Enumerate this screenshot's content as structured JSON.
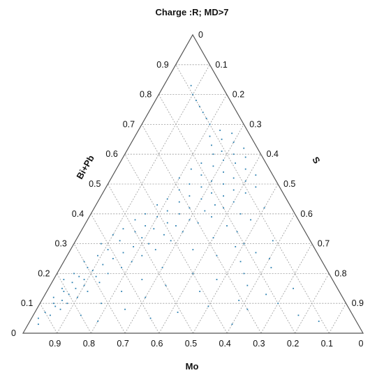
{
  "chart_data": {
    "type": "scatter",
    "subtype": "ternary",
    "title": "Charge :R; MD>7",
    "axes": {
      "bottom": {
        "label": "Mo",
        "ticks": [
          "0.9",
          "0.8",
          "0.7",
          "0.6",
          "0.5",
          "0.4",
          "0.3",
          "0.2",
          "0.1",
          "0"
        ]
      },
      "left": {
        "label": "Bi+Pb",
        "ticks": [
          "0",
          "0.1",
          "0.2",
          "0.3",
          "0.4",
          "0.5",
          "0.6",
          "0.7",
          "0.8",
          "0.9"
        ]
      },
      "right": {
        "label": "S",
        "ticks": [
          "0",
          "0.1",
          "0.2",
          "0.3",
          "0.4",
          "0.5",
          "0.6",
          "0.7",
          "0.8",
          "0.9"
        ]
      }
    },
    "grid": true,
    "marker_color": "#2a7fb0",
    "points_bipb_s": [
      [
        0.03,
        0.03
      ],
      [
        0.05,
        0.02
      ],
      [
        0.06,
        0.05
      ],
      [
        0.07,
        0.03
      ],
      [
        0.08,
        0.07
      ],
      [
        0.09,
        0.05
      ],
      [
        0.1,
        0.04
      ],
      [
        0.1,
        0.08
      ],
      [
        0.11,
        0.06
      ],
      [
        0.12,
        0.03
      ],
      [
        0.12,
        0.1
      ],
      [
        0.13,
        0.07
      ],
      [
        0.14,
        0.05
      ],
      [
        0.14,
        0.12
      ],
      [
        0.15,
        0.08
      ],
      [
        0.15,
        0.04
      ],
      [
        0.16,
        0.1
      ],
      [
        0.17,
        0.06
      ],
      [
        0.17,
        0.14
      ],
      [
        0.18,
        0.09
      ],
      [
        0.18,
        0.03
      ],
      [
        0.19,
        0.12
      ],
      [
        0.19,
        0.07
      ],
      [
        0.2,
        0.05
      ],
      [
        0.2,
        0.15
      ],
      [
        0.21,
        0.1
      ],
      [
        0.22,
        0.08
      ],
      [
        0.22,
        0.18
      ],
      [
        0.23,
        0.12
      ],
      [
        0.24,
        0.06
      ],
      [
        0.24,
        0.2
      ],
      [
        0.25,
        0.14
      ],
      [
        0.26,
        0.09
      ],
      [
        0.26,
        0.22
      ],
      [
        0.27,
        0.16
      ],
      [
        0.28,
        0.11
      ],
      [
        0.28,
        0.25
      ],
      [
        0.29,
        0.18
      ],
      [
        0.3,
        0.08
      ],
      [
        0.3,
        0.22
      ],
      [
        0.31,
        0.13
      ],
      [
        0.31,
        0.28
      ],
      [
        0.32,
        0.19
      ],
      [
        0.33,
        0.1
      ],
      [
        0.33,
        0.25
      ],
      [
        0.34,
        0.16
      ],
      [
        0.34,
        0.3
      ],
      [
        0.35,
        0.21
      ],
      [
        0.35,
        0.12
      ],
      [
        0.36,
        0.27
      ],
      [
        0.36,
        0.18
      ],
      [
        0.37,
        0.33
      ],
      [
        0.37,
        0.24
      ],
      [
        0.38,
        0.14
      ],
      [
        0.38,
        0.3
      ],
      [
        0.39,
        0.2
      ],
      [
        0.39,
        0.36
      ],
      [
        0.4,
        0.26
      ],
      [
        0.4,
        0.16
      ],
      [
        0.41,
        0.33
      ],
      [
        0.41,
        0.22
      ],
      [
        0.42,
        0.38
      ],
      [
        0.42,
        0.28
      ],
      [
        0.43,
        0.18
      ],
      [
        0.43,
        0.35
      ],
      [
        0.44,
        0.24
      ],
      [
        0.44,
        0.4
      ],
      [
        0.45,
        0.3
      ],
      [
        0.45,
        0.2
      ],
      [
        0.46,
        0.36
      ],
      [
        0.46,
        0.26
      ],
      [
        0.47,
        0.42
      ],
      [
        0.47,
        0.32
      ],
      [
        0.48,
        0.22
      ],
      [
        0.48,
        0.38
      ],
      [
        0.49,
        0.28
      ],
      [
        0.49,
        0.44
      ],
      [
        0.5,
        0.34
      ],
      [
        0.5,
        0.24
      ],
      [
        0.51,
        0.4
      ],
      [
        0.51,
        0.3
      ],
      [
        0.52,
        0.2
      ],
      [
        0.52,
        0.36
      ],
      [
        0.53,
        0.26
      ],
      [
        0.53,
        0.42
      ],
      [
        0.54,
        0.32
      ],
      [
        0.55,
        0.22
      ],
      [
        0.55,
        0.38
      ],
      [
        0.56,
        0.28
      ],
      [
        0.57,
        0.34
      ],
      [
        0.57,
        0.24
      ],
      [
        0.58,
        0.3
      ],
      [
        0.59,
        0.36
      ],
      [
        0.6,
        0.26
      ],
      [
        0.6,
        0.32
      ],
      [
        0.61,
        0.28
      ],
      [
        0.62,
        0.34
      ],
      [
        0.63,
        0.24
      ],
      [
        0.64,
        0.3
      ],
      [
        0.65,
        0.26
      ],
      [
        0.66,
        0.22
      ],
      [
        0.67,
        0.28
      ],
      [
        0.68,
        0.24
      ],
      [
        0.7,
        0.2
      ],
      [
        0.72,
        0.18
      ],
      [
        0.74,
        0.16
      ],
      [
        0.76,
        0.14
      ],
      [
        0.78,
        0.12
      ],
      [
        0.8,
        0.1
      ],
      [
        0.83,
        0.08
      ],
      [
        0.32,
        0.4
      ],
      [
        0.34,
        0.46
      ],
      [
        0.36,
        0.42
      ],
      [
        0.38,
        0.48
      ],
      [
        0.4,
        0.44
      ],
      [
        0.42,
        0.5
      ],
      [
        0.28,
        0.36
      ],
      [
        0.26,
        0.44
      ],
      [
        0.3,
        0.5
      ],
      [
        0.22,
        0.3
      ],
      [
        0.2,
        0.4
      ],
      [
        0.18,
        0.26
      ],
      [
        0.16,
        0.34
      ],
      [
        0.14,
        0.22
      ],
      [
        0.12,
        0.3
      ],
      [
        0.1,
        0.18
      ],
      [
        0.08,
        0.26
      ],
      [
        0.06,
        0.14
      ],
      [
        0.04,
        0.2
      ],
      [
        0.05,
        0.35
      ],
      [
        0.07,
        0.42
      ],
      [
        0.09,
        0.5
      ],
      [
        0.11,
        0.58
      ],
      [
        0.13,
        0.65
      ],
      [
        0.15,
        0.72
      ],
      [
        0.08,
        0.62
      ],
      [
        0.1,
        0.7
      ],
      [
        0.06,
        0.78
      ],
      [
        0.04,
        0.85
      ],
      [
        0.03,
        0.6
      ],
      [
        0.2,
        0.55
      ],
      [
        0.22,
        0.62
      ],
      [
        0.24,
        0.52
      ],
      [
        0.18,
        0.48
      ],
      [
        0.16,
        0.58
      ],
      [
        0.14,
        0.45
      ],
      [
        0.25,
        0.6
      ],
      [
        0.27,
        0.55
      ],
      [
        0.29,
        0.48
      ],
      [
        0.31,
        0.58
      ]
    ]
  }
}
